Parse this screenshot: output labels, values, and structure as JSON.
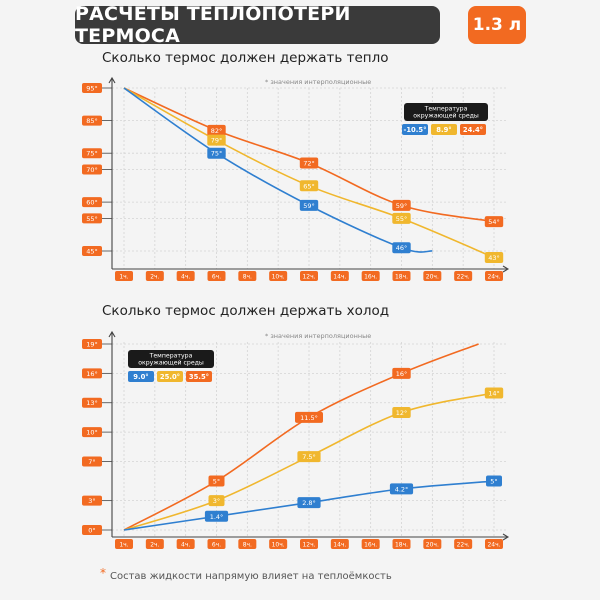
{
  "header": {
    "title": "РАСЧЕТЫ ТЕПЛОПОТЕРИ ТЕРМОСА",
    "volume": "1.3 л"
  },
  "footnote": {
    "star": "*",
    "text": "Состав жидкости напрямую влияет на теплоёмкость"
  },
  "colors": {
    "orange": "#f26a21",
    "yellow": "#f0b72e",
    "blue": "#2f7fd0",
    "dark": "#1a1a1a"
  },
  "chart_data": [
    {
      "type": "line",
      "title": "Сколько термос должен держать тепло",
      "subtitle": "* значения интерполяционные",
      "x_ticks": [
        "1ч.",
        "2ч.",
        "4ч.",
        "6ч.",
        "8ч.",
        "10ч.",
        "12ч.",
        "14ч.",
        "16ч.",
        "18ч.",
        "20ч.",
        "22ч.",
        "24ч."
      ],
      "y_ticks": [
        "95°",
        "85°",
        "75°",
        "70°",
        "60°",
        "55°",
        "45°"
      ],
      "legend": {
        "title": "Температура окружающей среды",
        "entries": [
          "-10.5°",
          "8.9°",
          "24.4°"
        ],
        "placement": "top-right"
      },
      "series": [
        {
          "name": "24.4°",
          "color": "orange",
          "x": [
            1,
            6,
            12,
            18,
            24
          ],
          "y": [
            95,
            82,
            72,
            59,
            54
          ],
          "labels": [
            "",
            "82°",
            "72°",
            "59°",
            "54°"
          ]
        },
        {
          "name": "8.9°",
          "color": "yellow",
          "x": [
            1,
            6,
            12,
            18,
            24
          ],
          "y": [
            95,
            79,
            65,
            55,
            43
          ],
          "labels": [
            "",
            "79°",
            "65°",
            "55°",
            "43°"
          ]
        },
        {
          "name": "-10.5°",
          "color": "blue",
          "x": [
            1,
            6,
            12,
            18,
            20
          ],
          "y": [
            95,
            75,
            59,
            46,
            45
          ],
          "labels": [
            "",
            "75°",
            "59°",
            "46°",
            ""
          ]
        }
      ]
    },
    {
      "type": "line",
      "title": "Сколько термос должен держать холод",
      "subtitle": "* значения интерполяционные",
      "x_ticks": [
        "1ч.",
        "2ч.",
        "4ч.",
        "6ч.",
        "8ч.",
        "10ч.",
        "12ч.",
        "14ч.",
        "16ч.",
        "18ч.",
        "20ч.",
        "22ч.",
        "24ч."
      ],
      "y_ticks": [
        "19°",
        "16°",
        "13°",
        "10°",
        "7°",
        "3°",
        "0°"
      ],
      "legend": {
        "title": "Температура окружающей среды",
        "entries": [
          "9.0°",
          "25.0°",
          "35.5°"
        ],
        "placement": "top-left"
      },
      "series": [
        {
          "name": "35.5°",
          "color": "orange",
          "x": [
            1,
            6,
            12,
            18,
            23
          ],
          "y": [
            0,
            5,
            11.5,
            16,
            19
          ],
          "labels": [
            "",
            "5°",
            "11.5°",
            "16°",
            ""
          ]
        },
        {
          "name": "25.0°",
          "color": "yellow",
          "x": [
            1,
            6,
            12,
            18,
            24
          ],
          "y": [
            0,
            3,
            7.5,
            12,
            14
          ],
          "labels": [
            "",
            "3°",
            "7.5°",
            "12°",
            "14°"
          ]
        },
        {
          "name": "9.0°",
          "color": "blue",
          "x": [
            1,
            6,
            12,
            18,
            24
          ],
          "y": [
            0,
            1.4,
            2.8,
            4.2,
            5
          ],
          "labels": [
            "",
            "1.4°",
            "2.8°",
            "4.2°",
            "5°"
          ]
        }
      ]
    }
  ]
}
